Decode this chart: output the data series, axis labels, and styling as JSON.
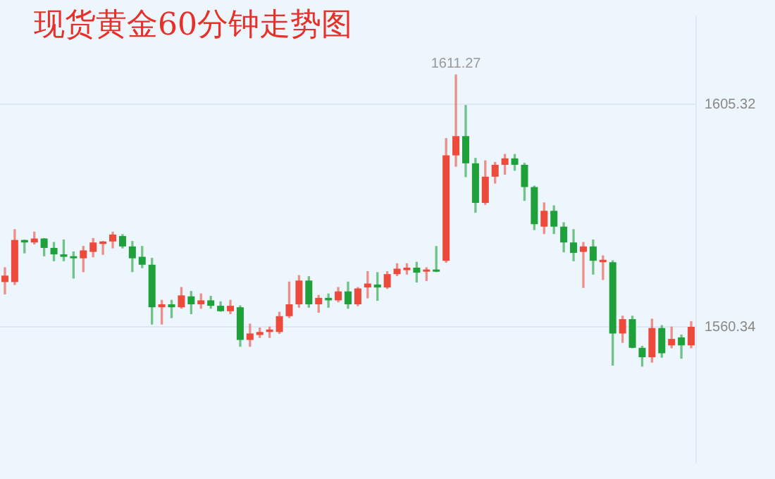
{
  "chart_data": {
    "type": "candlestick",
    "title": "现货黄金60分钟走势图",
    "categories": [
      null,
      null,
      null,
      null,
      null,
      null,
      null,
      null,
      null,
      null,
      null,
      null,
      null,
      null,
      null,
      null,
      null,
      null,
      null,
      null,
      null,
      null,
      null,
      null,
      null,
      null,
      null,
      null,
      null,
      null,
      null,
      null,
      null,
      null,
      null,
      null,
      null,
      null,
      null,
      null,
      null,
      null,
      null,
      null,
      null,
      null,
      null,
      null,
      null,
      null,
      null,
      null,
      null,
      null,
      null,
      null,
      null,
      null,
      null,
      null,
      null,
      null,
      null,
      null,
      null,
      null,
      null,
      null,
      null,
      null,
      null
    ],
    "ohlc": [
      [
        1569.4,
        1572.3,
        1567.0,
        1570.7
      ],
      [
        1569.4,
        1580.0,
        1568.9,
        1577.9
      ],
      [
        1577.9,
        1577.9,
        1575.3,
        1577.4
      ],
      [
        1577.4,
        1579.5,
        1577.1,
        1578.2
      ],
      [
        1578.2,
        1578.2,
        1574.7,
        1576.3
      ],
      [
        1576.3,
        1577.4,
        1573.7,
        1575.0
      ],
      [
        1575.0,
        1577.9,
        1573.7,
        1574.5
      ],
      [
        1574.5,
        1575.5,
        1570.2,
        1574.2
      ],
      [
        1574.2,
        1576.6,
        1571.5,
        1575.8
      ],
      [
        1575.5,
        1578.2,
        1574.5,
        1577.4
      ],
      [
        1577.1,
        1577.6,
        1575.0,
        1577.6
      ],
      [
        1577.6,
        1579.5,
        1576.3,
        1579.0
      ],
      [
        1578.7,
        1579.0,
        1576.3,
        1576.6
      ],
      [
        1576.6,
        1577.6,
        1571.5,
        1574.2
      ],
      [
        1574.5,
        1576.6,
        1572.3,
        1572.9
      ],
      [
        1572.9,
        1574.2,
        1560.9,
        1564.3
      ],
      [
        1564.3,
        1565.7,
        1560.9,
        1564.9
      ],
      [
        1564.9,
        1565.7,
        1562.2,
        1564.3
      ],
      [
        1564.3,
        1568.3,
        1564.1,
        1566.7
      ],
      [
        1566.5,
        1567.5,
        1563.0,
        1564.9
      ],
      [
        1564.9,
        1567.0,
        1564.1,
        1565.7
      ],
      [
        1565.7,
        1566.5,
        1564.1,
        1564.6
      ],
      [
        1564.6,
        1565.4,
        1563.5,
        1563.5
      ],
      [
        1563.5,
        1565.7,
        1563.0,
        1564.6
      ],
      [
        1564.3,
        1564.6,
        1556.4,
        1557.7
      ],
      [
        1557.7,
        1560.9,
        1556.4,
        1559.0
      ],
      [
        1558.7,
        1560.1,
        1558.2,
        1559.3
      ],
      [
        1559.3,
        1560.3,
        1558.2,
        1559.8
      ],
      [
        1559.3,
        1563.3,
        1559.0,
        1562.5
      ],
      [
        1562.5,
        1569.4,
        1562.2,
        1564.9
      ],
      [
        1564.9,
        1570.7,
        1564.3,
        1569.7
      ],
      [
        1569.7,
        1570.5,
        1564.3,
        1564.9
      ],
      [
        1564.9,
        1566.7,
        1563.3,
        1566.2
      ],
      [
        1566.2,
        1567.0,
        1564.3,
        1565.7
      ],
      [
        1565.7,
        1568.3,
        1565.4,
        1567.5
      ],
      [
        1567.5,
        1569.4,
        1564.1,
        1564.9
      ],
      [
        1564.9,
        1568.3,
        1564.6,
        1568.1
      ],
      [
        1568.3,
        1571.5,
        1566.2,
        1569.1
      ],
      [
        1568.9,
        1571.3,
        1565.7,
        1568.3
      ],
      [
        1568.3,
        1571.5,
        1568.1,
        1571.0
      ],
      [
        1571.0,
        1573.1,
        1570.7,
        1572.1
      ],
      [
        1571.8,
        1573.1,
        1571.0,
        1572.3
      ],
      [
        1572.3,
        1573.4,
        1569.4,
        1571.3
      ],
      [
        1571.5,
        1572.3,
        1569.7,
        1571.8
      ],
      [
        1571.8,
        1576.6,
        1571.5,
        1571.5
      ],
      [
        1573.7,
        1598.4,
        1573.4,
        1595.0
      ],
      [
        1595.0,
        1611.27,
        1592.8,
        1598.9
      ],
      [
        1598.9,
        1605.1,
        1590.7,
        1593.4
      ],
      [
        1593.4,
        1594.4,
        1583.5,
        1585.4
      ],
      [
        1585.4,
        1593.9,
        1585.1,
        1590.7
      ],
      [
        1590.7,
        1593.6,
        1589.4,
        1593.1
      ],
      [
        1593.1,
        1595.2,
        1591.2,
        1594.4
      ],
      [
        1594.4,
        1595.2,
        1592.0,
        1593.1
      ],
      [
        1593.1,
        1593.4,
        1585.9,
        1588.6
      ],
      [
        1588.6,
        1588.8,
        1580.0,
        1581.1
      ],
      [
        1580.6,
        1585.4,
        1579.2,
        1583.8
      ],
      [
        1583.8,
        1584.8,
        1579.2,
        1580.6
      ],
      [
        1580.6,
        1581.4,
        1575.5,
        1577.4
      ],
      [
        1577.4,
        1580.0,
        1573.7,
        1575.3
      ],
      [
        1575.5,
        1577.4,
        1568.3,
        1576.6
      ],
      [
        1576.6,
        1577.9,
        1571.0,
        1573.7
      ],
      [
        1573.4,
        1574.7,
        1569.9,
        1573.9
      ],
      [
        1573.4,
        1573.7,
        1552.6,
        1559.0
      ],
      [
        1559.0,
        1562.5,
        1557.2,
        1561.9
      ],
      [
        1561.9,
        1562.5,
        1556.1,
        1556.1
      ],
      [
        1556.1,
        1556.4,
        1552.4,
        1554.2
      ],
      [
        1554.2,
        1561.9,
        1553.2,
        1560.1
      ],
      [
        1560.1,
        1560.6,
        1554.2,
        1555.0
      ],
      [
        1556.6,
        1560.3,
        1556.1,
        1557.9
      ],
      [
        1558.2,
        1558.7,
        1554.0,
        1556.6
      ],
      [
        1556.6,
        1561.4,
        1556.1,
        1560.34
      ]
    ],
    "colors": [
      "#ee4a3c",
      "#ee4a3c",
      "#1ea03a",
      "#ee4a3c",
      "#1ea03a",
      "#1ea03a",
      "#1ea03a",
      "#1ea03a",
      "#ee4a3c",
      "#ee4a3c",
      "#ee4a3c",
      "#ee4a3c",
      "#1ea03a",
      "#1ea03a",
      "#1ea03a",
      "#1ea03a",
      "#ee4a3c",
      "#1ea03a",
      "#ee4a3c",
      "#1ea03a",
      "#ee4a3c",
      "#1ea03a",
      "#1ea03a",
      "#ee4a3c",
      "#1ea03a",
      "#ee4a3c",
      "#ee4a3c",
      "#ee4a3c",
      "#ee4a3c",
      "#ee4a3c",
      "#ee4a3c",
      "#1ea03a",
      "#ee4a3c",
      "#1ea03a",
      "#ee4a3c",
      "#1ea03a",
      "#ee4a3c",
      "#ee4a3c",
      "#1ea03a",
      "#ee4a3c",
      "#ee4a3c",
      "#ee4a3c",
      "#1ea03a",
      "#ee4a3c",
      "#1ea03a",
      "#ee4a3c",
      "#ee4a3c",
      "#1ea03a",
      "#1ea03a",
      "#ee4a3c",
      "#ee4a3c",
      "#ee4a3c",
      "#1ea03a",
      "#1ea03a",
      "#1ea03a",
      "#ee4a3c",
      "#1ea03a",
      "#1ea03a",
      "#1ea03a",
      "#ee4a3c",
      "#1ea03a",
      "#ee4a3c",
      "#1ea03a",
      "#ee4a3c",
      "#1ea03a",
      "#1ea03a",
      "#ee4a3c",
      "#1ea03a",
      "#ee4a3c",
      "#1ea03a",
      "#ee4a3c"
    ],
    "ylim": [
      1533,
      1623
    ],
    "yticks": [
      1605.32,
      1560.34
    ],
    "grid": "y",
    "tick_labels": "y",
    "annotations": [
      {
        "text": "1611.27",
        "y": 1611.27
      }
    ]
  }
}
